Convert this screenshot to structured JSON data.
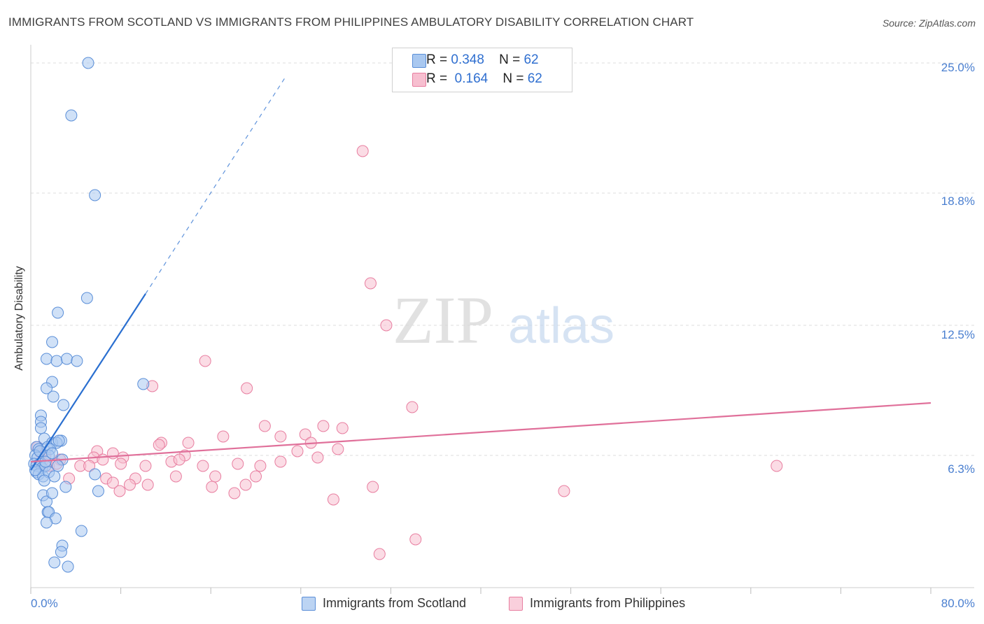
{
  "title": "IMMIGRANTS FROM SCOTLAND VS IMMIGRANTS FROM PHILIPPINES AMBULATORY DISABILITY CORRELATION CHART",
  "source": "Source: ZipAtlas.com",
  "watermark": {
    "zip": "ZIP",
    "atlas": "atlas"
  },
  "colors": {
    "scotland_fill": "#a9c8f0",
    "scotland_stroke": "#5b8fd8",
    "scotland_line": "#2a6fd0",
    "philippines_fill": "#f7bfd0",
    "philippines_stroke": "#e87ea0",
    "philippines_line": "#e0709a",
    "tick_text": "#4a7fd0",
    "grid": "#dddddd"
  },
  "legend": {
    "rows": [
      {
        "r_label": "R =",
        "r_value": "0.348",
        "n_label": "N =",
        "n_value": "62"
      },
      {
        "r_label": "R =",
        "r_value": "0.164",
        "n_label": "N =",
        "n_value": "62"
      }
    ]
  },
  "bottom_legend": {
    "scotland": "Immigrants from Scotland",
    "philippines": "Immigrants from Philippines"
  },
  "chart_data": {
    "type": "scatter",
    "title": "IMMIGRANTS FROM SCOTLAND VS IMMIGRANTS FROM PHILIPPINES AMBULATORY DISABILITY CORRELATION CHART",
    "xlabel": "",
    "ylabel": "Ambulatory Disability",
    "xlim": [
      0,
      80
    ],
    "ylim": [
      0,
      25.6
    ],
    "x_tick_labels": [
      "0.0%",
      "80.0%"
    ],
    "y_ticks": [
      6.3,
      12.5,
      18.8,
      25.0
    ],
    "y_tick_labels": [
      "6.3%",
      "12.5%",
      "18.8%",
      "25.0%"
    ],
    "series": [
      {
        "name": "Immigrants from Scotland",
        "r": 0.348,
        "n": 62,
        "trend": {
          "x0": 0.0,
          "y0": 5.6,
          "x1": 10.2,
          "y1": 14.0,
          "dashed_to_x": 22.6,
          "dashed_to_y": 24.3
        },
        "points": [
          [
            5.1,
            25.0
          ],
          [
            3.6,
            22.5
          ],
          [
            5.7,
            18.7
          ],
          [
            5.0,
            13.8
          ],
          [
            2.4,
            13.1
          ],
          [
            1.9,
            11.7
          ],
          [
            1.4,
            10.9
          ],
          [
            2.3,
            10.8
          ],
          [
            3.2,
            10.9
          ],
          [
            4.1,
            10.8
          ],
          [
            1.9,
            9.8
          ],
          [
            1.4,
            9.5
          ],
          [
            2.0,
            9.1
          ],
          [
            2.9,
            8.7
          ],
          [
            10.0,
            9.7
          ],
          [
            0.9,
            8.2
          ],
          [
            0.9,
            7.9
          ],
          [
            0.9,
            7.6
          ],
          [
            1.2,
            7.1
          ],
          [
            2.7,
            7.0
          ],
          [
            1.9,
            6.9
          ],
          [
            2.3,
            6.9
          ],
          [
            2.5,
            7.0
          ],
          [
            0.5,
            6.7
          ],
          [
            0.7,
            6.6
          ],
          [
            1.5,
            6.7
          ],
          [
            1.7,
            6.6
          ],
          [
            0.4,
            6.3
          ],
          [
            0.6,
            6.2
          ],
          [
            1.6,
            6.3
          ],
          [
            2.8,
            6.1
          ],
          [
            0.3,
            5.9
          ],
          [
            0.5,
            5.8
          ],
          [
            0.8,
            5.9
          ],
          [
            1.0,
            5.7
          ],
          [
            1.3,
            5.8
          ],
          [
            2.4,
            5.8
          ],
          [
            0.5,
            5.5
          ],
          [
            0.7,
            5.4
          ],
          [
            1.1,
            5.3
          ],
          [
            1.6,
            5.5
          ],
          [
            2.1,
            5.3
          ],
          [
            5.7,
            5.4
          ],
          [
            3.1,
            4.8
          ],
          [
            6.0,
            4.6
          ],
          [
            1.1,
            4.4
          ],
          [
            1.4,
            4.1
          ],
          [
            1.9,
            4.5
          ],
          [
            1.5,
            3.6
          ],
          [
            1.6,
            3.6
          ],
          [
            2.2,
            3.3
          ],
          [
            1.4,
            3.1
          ],
          [
            4.5,
            2.7
          ],
          [
            2.8,
            2.0
          ],
          [
            2.7,
            1.7
          ],
          [
            2.1,
            1.2
          ],
          [
            3.3,
            1.0
          ],
          [
            1.3,
            6.0
          ],
          [
            0.8,
            6.5
          ],
          [
            1.9,
            6.4
          ],
          [
            0.4,
            5.6
          ],
          [
            1.2,
            5.1
          ]
        ]
      },
      {
        "name": "Immigrants from Philippines",
        "r": 0.164,
        "n": 62,
        "trend": {
          "x0": 0.0,
          "y0": 6.0,
          "x1": 80.0,
          "y1": 8.8
        },
        "points": [
          [
            29.5,
            20.8
          ],
          [
            30.2,
            14.5
          ],
          [
            31.6,
            12.5
          ],
          [
            15.5,
            10.8
          ],
          [
            10.8,
            9.6
          ],
          [
            19.2,
            9.5
          ],
          [
            33.9,
            8.6
          ],
          [
            20.8,
            7.7
          ],
          [
            26.0,
            7.7
          ],
          [
            27.7,
            7.6
          ],
          [
            24.4,
            7.3
          ],
          [
            17.1,
            7.2
          ],
          [
            22.2,
            7.2
          ],
          [
            11.6,
            6.9
          ],
          [
            11.4,
            6.8
          ],
          [
            14.0,
            6.9
          ],
          [
            24.9,
            6.9
          ],
          [
            27.3,
            6.6
          ],
          [
            23.7,
            6.5
          ],
          [
            5.9,
            6.5
          ],
          [
            7.3,
            6.4
          ],
          [
            13.7,
            6.3
          ],
          [
            25.5,
            6.2
          ],
          [
            5.6,
            6.2
          ],
          [
            2.6,
            6.1
          ],
          [
            6.4,
            6.1
          ],
          [
            8.2,
            6.2
          ],
          [
            12.5,
            6.0
          ],
          [
            13.2,
            6.1
          ],
          [
            22.2,
            6.0
          ],
          [
            8.0,
            5.9
          ],
          [
            10.2,
            5.8
          ],
          [
            4.4,
            5.8
          ],
          [
            5.2,
            5.8
          ],
          [
            15.3,
            5.8
          ],
          [
            18.4,
            5.9
          ],
          [
            20.4,
            5.8
          ],
          [
            1.0,
            6.0
          ],
          [
            1.6,
            5.8
          ],
          [
            2.3,
            5.9
          ],
          [
            66.3,
            5.8
          ],
          [
            6.7,
            5.2
          ],
          [
            16.4,
            5.3
          ],
          [
            20.0,
            5.3
          ],
          [
            3.4,
            5.2
          ],
          [
            9.3,
            5.2
          ],
          [
            12.9,
            5.3
          ],
          [
            7.3,
            5.0
          ],
          [
            8.8,
            4.9
          ],
          [
            10.4,
            4.9
          ],
          [
            16.1,
            4.8
          ],
          [
            19.1,
            4.9
          ],
          [
            30.4,
            4.8
          ],
          [
            7.9,
            4.6
          ],
          [
            18.1,
            4.5
          ],
          [
            47.4,
            4.6
          ],
          [
            26.9,
            4.2
          ],
          [
            34.2,
            2.3
          ],
          [
            31.0,
            1.6
          ],
          [
            0.6,
            6.7
          ],
          [
            0.9,
            6.4
          ],
          [
            1.3,
            6.3
          ]
        ]
      }
    ]
  }
}
